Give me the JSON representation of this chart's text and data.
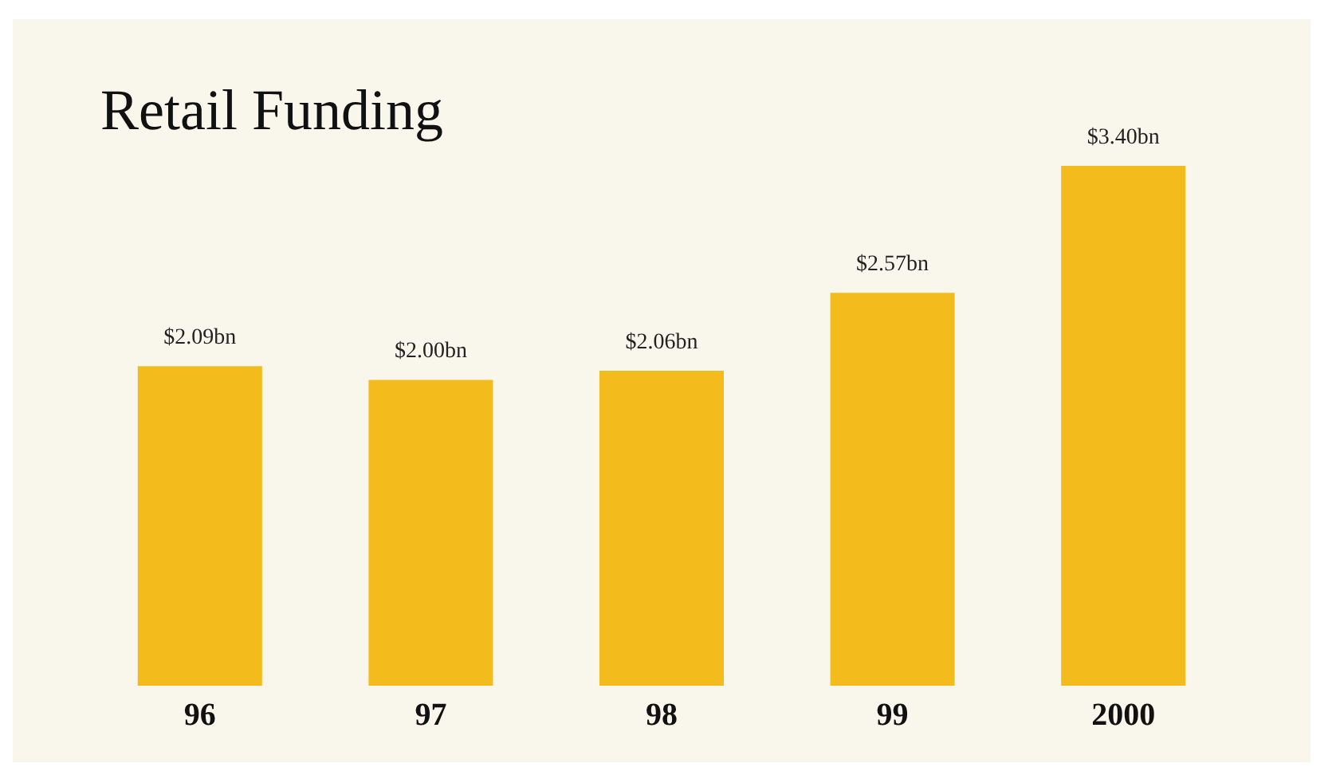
{
  "chart_data": {
    "type": "bar",
    "title": "Retail Funding",
    "categories": [
      "96",
      "97",
      "98",
      "99",
      "2000"
    ],
    "values": [
      2.09,
      2.0,
      2.06,
      2.57,
      3.4
    ],
    "value_labels": [
      "$2.09bn",
      "$2.00bn",
      "$2.06bn",
      "$2.57bn",
      "$3.40bn"
    ],
    "color": "#f3bc1c"
  }
}
